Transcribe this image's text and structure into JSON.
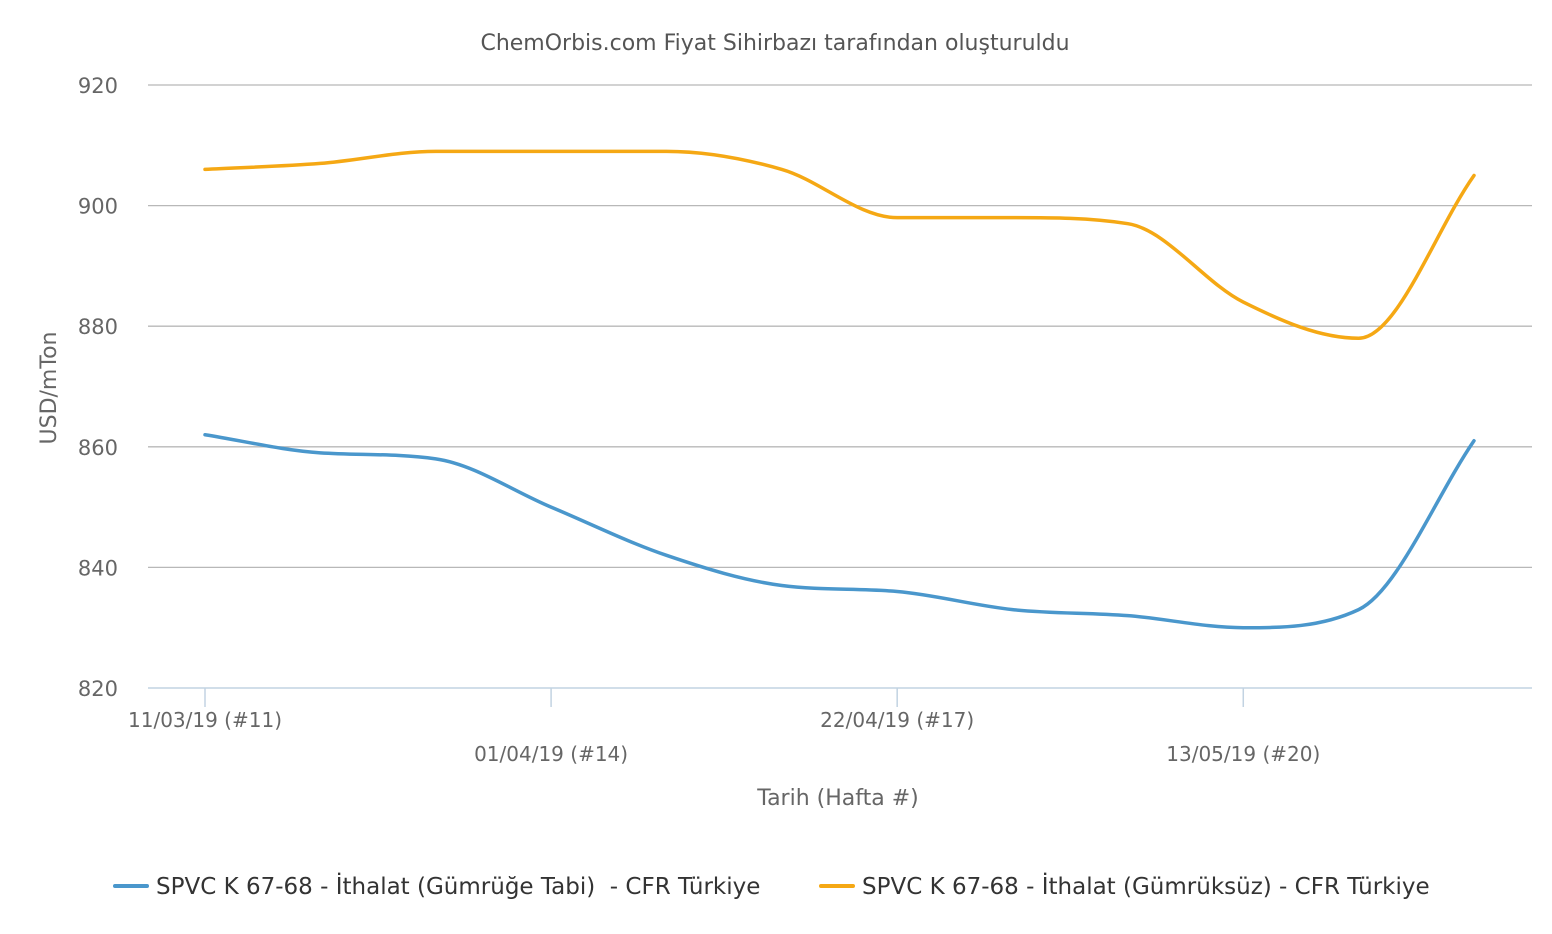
{
  "chart_data": {
    "type": "line",
    "title": "ChemOrbis.com Fiyat Sihirbazı tarafından oluşturuldu",
    "xlabel": "Tarih (Hafta #)",
    "ylabel": "USD/mTon",
    "ylim": [
      820,
      920
    ],
    "yticks": [
      820,
      840,
      860,
      880,
      900,
      920
    ],
    "grid": true,
    "legend_position": "bottom",
    "x": [
      "2019-03-11",
      "2019-03-18",
      "2019-03-25",
      "2019-04-01",
      "2019-04-08",
      "2019-04-15",
      "2019-04-22",
      "2019-04-29",
      "2019-05-06",
      "2019-05-13",
      "2019-05-20",
      "2019-05-27"
    ],
    "xticks": [
      {
        "date": "2019-03-11",
        "label": "11/03/19 (#11)"
      },
      {
        "date": "2019-04-01",
        "label": "01/04/19 (#14)"
      },
      {
        "date": "2019-04-22",
        "label": "22/04/19 (#17)"
      },
      {
        "date": "2019-05-13",
        "label": "13/05/19 (#20)"
      }
    ],
    "series": [
      {
        "name": "SPVC K 67-68 - İthalat (Gümrüğe Tabi)  - CFR Türkiye",
        "color": "#4a97cc",
        "values": [
          862,
          859,
          858,
          850,
          842,
          837,
          836,
          833,
          832,
          830,
          833,
          861
        ]
      },
      {
        "name": "SPVC K 67-68 - İthalat (Gümrüksüz) - CFR Türkiye",
        "color": "#f5a814",
        "values": [
          906,
          907,
          909,
          909,
          909,
          906,
          898,
          898,
          897,
          884,
          878,
          905
        ]
      }
    ]
  },
  "colors": {
    "grid": "#b8b8b8",
    "axis": "#c2d3e2",
    "text": "#666666",
    "legend_text": "#333333"
  }
}
